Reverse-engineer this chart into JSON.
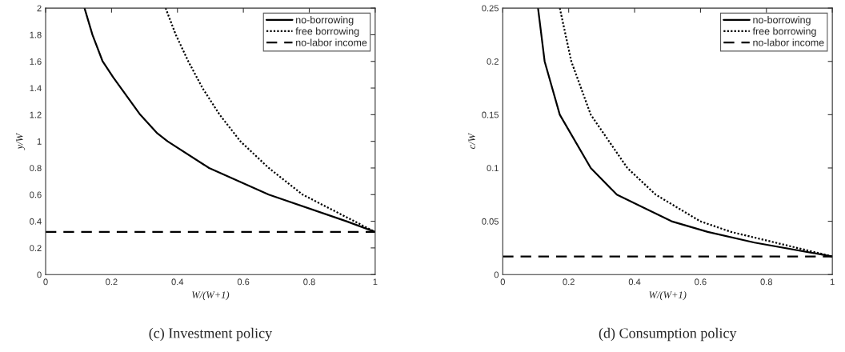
{
  "chart_data": [
    {
      "type": "line",
      "xlabel": "W/(W+1)",
      "ylabel": "y/W",
      "xlim": [
        0,
        1
      ],
      "ylim": [
        0,
        2
      ],
      "xticks": [
        0,
        0.2,
        0.4,
        0.6,
        0.8,
        1
      ],
      "yticks": [
        0,
        0.2,
        0.4,
        0.6,
        0.8,
        1,
        1.2,
        1.4,
        1.6,
        1.8,
        2
      ],
      "grid": false,
      "legend": "top right",
      "annotations": [
        "(c) Investment policy"
      ],
      "series": [
        {
          "name": "no-borrowing",
          "color": "#000000",
          "line_style": "solid",
          "x": [
            0.118,
            0.142,
            0.173,
            0.205,
            0.287,
            0.339,
            0.37,
            0.496,
            0.677,
            0.913,
            1
          ],
          "values": [
            2,
            1.8,
            1.6,
            1.48,
            1.2,
            1.06,
            1,
            0.8,
            0.6,
            0.4,
            0.32
          ]
        },
        {
          "name": "free borrowing",
          "color": "#000000",
          "line_style": "dotted",
          "x": [
            0.364,
            0.395,
            0.433,
            0.476,
            0.528,
            0.591,
            0.677,
            0.78,
            0.937,
            1
          ],
          "values": [
            2,
            1.8,
            1.6,
            1.4,
            1.2,
            1,
            0.8,
            0.6,
            0.4,
            0.32
          ]
        },
        {
          "name": "no-labor income",
          "color": "#000000",
          "line_style": "dashed",
          "x": [
            0,
            1
          ],
          "values": [
            0.32,
            0.32
          ]
        }
      ]
    },
    {
      "type": "line",
      "xlabel": "W/(W+1)",
      "ylabel": "c/W",
      "xlim": [
        0,
        1
      ],
      "ylim": [
        0,
        0.25
      ],
      "xticks": [
        0,
        0.2,
        0.4,
        0.6,
        0.8,
        1
      ],
      "yticks": [
        0,
        0.05,
        0.1,
        0.15,
        0.2,
        0.25
      ],
      "grid": false,
      "legend": "top right",
      "annotations": [
        "(d) Consumption policy"
      ],
      "series": [
        {
          "name": "no-borrowing",
          "color": "#000000",
          "line_style": "solid",
          "x": [
            0.107,
            0.127,
            0.173,
            0.267,
            0.346,
            0.512,
            0.622,
            0.764,
            1
          ],
          "values": [
            0.25,
            0.2,
            0.15,
            0.1,
            0.075,
            0.05,
            0.04,
            0.03,
            0.017
          ]
        },
        {
          "name": "free borrowing",
          "color": "#000000",
          "line_style": "dotted",
          "x": [
            0.173,
            0.208,
            0.267,
            0.378,
            0.464,
            0.599,
            0.693,
            0.827,
            1
          ],
          "values": [
            0.25,
            0.2,
            0.15,
            0.1,
            0.075,
            0.05,
            0.04,
            0.03,
            0.017
          ]
        },
        {
          "name": "no-labor income",
          "color": "#000000",
          "line_style": "dashed",
          "x": [
            0,
            1
          ],
          "values": [
            0.017,
            0.017
          ]
        }
      ]
    }
  ]
}
